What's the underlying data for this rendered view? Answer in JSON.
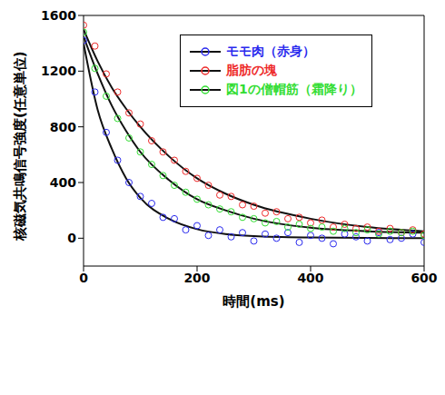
{
  "chart_data": {
    "type": "scatter",
    "x_label": "時間(ms)",
    "y_label": "核磁気共鳴信号強度(任意単位)",
    "xlim": [
      0,
      600
    ],
    "xticks": [
      0,
      200,
      400,
      600
    ],
    "ylim": [
      -200,
      1600
    ],
    "yticks": [
      0,
      400,
      800,
      1200,
      1600
    ],
    "grid": false,
    "legend": "top",
    "series": [
      {
        "name": "モモ肉（赤身）",
        "color": "#2a2aee",
        "marker": "circle",
        "x": [
          0,
          20,
          40,
          60,
          80,
          100,
          120,
          140,
          160,
          180,
          200,
          220,
          240,
          260,
          280,
          300,
          320,
          340,
          360,
          380,
          400,
          420,
          440,
          460,
          480,
          500,
          520,
          540,
          560,
          580,
          600
        ],
        "values": [
          1420,
          1050,
          760,
          560,
          400,
          300,
          250,
          150,
          140,
          60,
          90,
          20,
          60,
          10,
          40,
          -20,
          30,
          0,
          40,
          -30,
          20,
          0,
          -40,
          30,
          10,
          -20,
          40,
          -10,
          0,
          30,
          -30
        ],
        "fit_x": [
          0,
          25,
          50,
          75,
          100,
          150,
          200,
          250,
          300,
          400,
          500,
          600
        ],
        "fit_values": [
          1400,
          920,
          640,
          430,
          290,
          140,
          65,
          30,
          15,
          5,
          2,
          0
        ]
      },
      {
        "name": "脂肪の塊",
        "color": "#ee2a2a",
        "marker": "circle",
        "x": [
          0,
          20,
          40,
          60,
          80,
          100,
          120,
          140,
          160,
          180,
          200,
          220,
          240,
          260,
          280,
          300,
          320,
          340,
          360,
          380,
          400,
          420,
          440,
          460,
          480,
          500,
          520,
          540,
          560,
          580,
          600
        ],
        "values": [
          1530,
          1380,
          1180,
          1050,
          900,
          820,
          700,
          620,
          560,
          480,
          430,
          380,
          310,
          300,
          240,
          230,
          180,
          190,
          140,
          150,
          110,
          130,
          80,
          100,
          70,
          80,
          50,
          70,
          40,
          60,
          30
        ],
        "fit_x": [
          0,
          25,
          50,
          75,
          100,
          150,
          200,
          250,
          300,
          400,
          500,
          600
        ],
        "fit_values": [
          1500,
          1270,
          1080,
          930,
          800,
          590,
          430,
          320,
          240,
          140,
          80,
          50
        ]
      },
      {
        "name": "図1の僧帽筋（霜降り）",
        "color": "#33dd33",
        "marker": "circle",
        "x": [
          0,
          20,
          40,
          60,
          80,
          100,
          120,
          140,
          160,
          180,
          200,
          220,
          240,
          260,
          280,
          300,
          320,
          340,
          360,
          380,
          400,
          420,
          440,
          460,
          480,
          500,
          520,
          540,
          560,
          580,
          600
        ],
        "values": [
          1480,
          1220,
          1020,
          860,
          720,
          620,
          530,
          450,
          380,
          330,
          280,
          240,
          210,
          190,
          150,
          140,
          110,
          120,
          80,
          100,
          70,
          80,
          50,
          70,
          40,
          60,
          30,
          50,
          40,
          50,
          20
        ],
        "fit_x": [
          0,
          25,
          50,
          75,
          100,
          150,
          200,
          250,
          300,
          400,
          500,
          600
        ],
        "fit_values": [
          1450,
          1180,
          950,
          770,
          620,
          420,
          280,
          200,
          140,
          75,
          50,
          40
        ]
      }
    ]
  }
}
